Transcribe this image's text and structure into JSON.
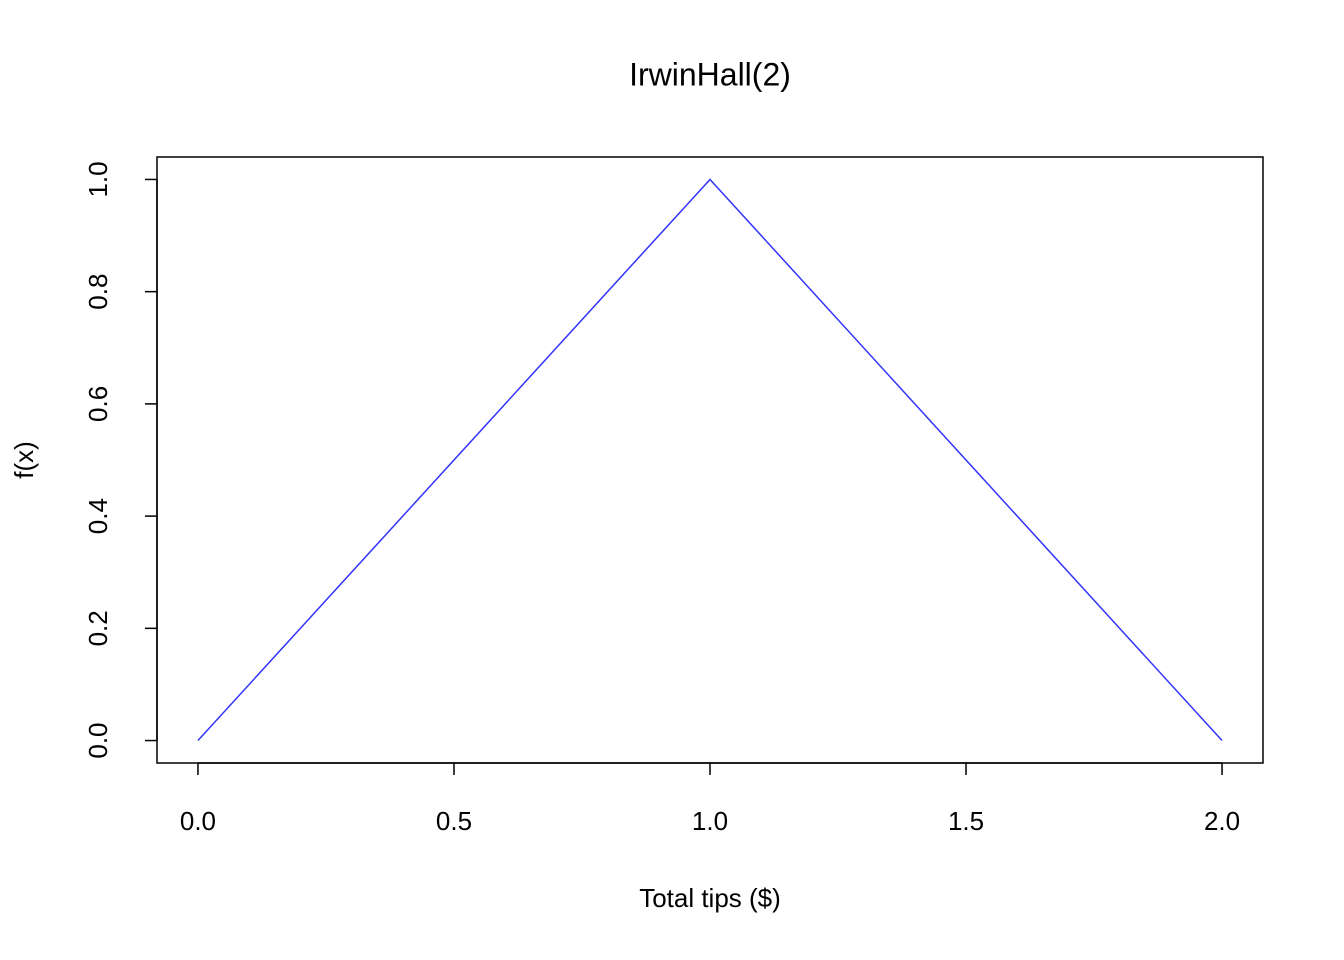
{
  "chart_data": {
    "type": "line",
    "title": "IrwinHall(2)",
    "xlabel": "Total tips ($)",
    "ylabel": "f(x)",
    "x": [
      0,
      1,
      2
    ],
    "values": [
      0,
      1,
      0
    ],
    "color": "#3333ff",
    "xlim": [
      -0.08,
      2.08
    ],
    "ylim": [
      -0.04,
      1.04
    ],
    "xticks": [
      {
        "value": 0,
        "label": "0.0"
      },
      0.5,
      {
        "value": 1,
        "label": "1.0"
      },
      1.5,
      {
        "value": 2,
        "label": "2.0"
      }
    ],
    "yticks": [
      {
        "value": 0,
        "label": "0.0"
      },
      0.2,
      0.4,
      0.6,
      0.8,
      {
        "value": 1,
        "label": "1.0"
      }
    ],
    "grid": false
  }
}
